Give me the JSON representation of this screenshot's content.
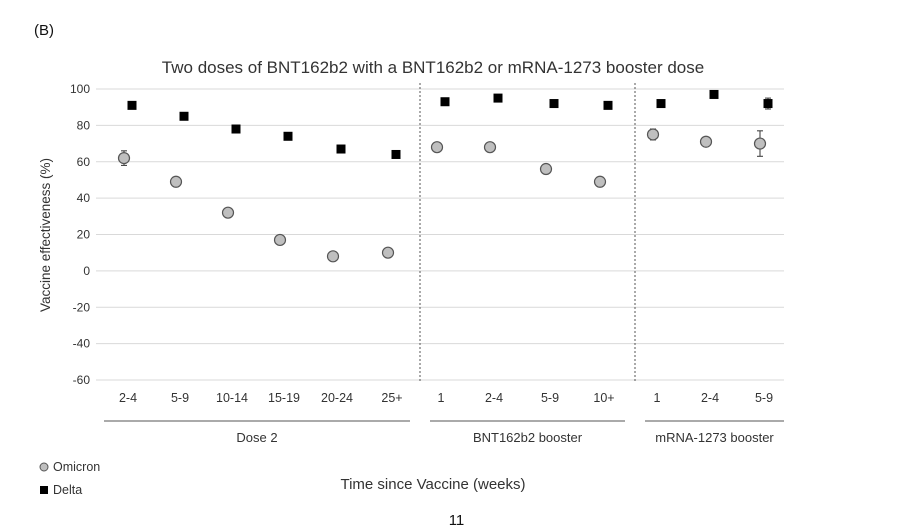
{
  "panel_label": "(B)",
  "page_number": "11",
  "chart_data": {
    "type": "scatter",
    "title": "Two doses of BNT162b2 with a BNT162b2 or mRNA-1273 booster dose",
    "ylabel": "Vaccine effectiveness (%)",
    "xlabel": "Time since Vaccine (weeks)",
    "ylim": [
      -60,
      100
    ],
    "yticks": [
      -60,
      -40,
      -20,
      0,
      20,
      40,
      60,
      80,
      100
    ],
    "grid": "horizontal",
    "legend_position": "bottom-left",
    "groups": [
      {
        "name": "Dose 2",
        "categories": [
          "2-4",
          "5-9",
          "10-14",
          "15-19",
          "20-24",
          "25+"
        ]
      },
      {
        "name": "BNT162b2 booster",
        "categories": [
          "1",
          "2-4",
          "5-9",
          "10+"
        ]
      },
      {
        "name": "mRNA-1273 booster",
        "categories": [
          "1",
          "2-4",
          "5-9"
        ]
      }
    ],
    "series": [
      {
        "name": "Omicron",
        "marker": "circle",
        "color": "#bfbfbf",
        "values": [
          62,
          49,
          32,
          17,
          8,
          10,
          68,
          68,
          56,
          49,
          75,
          71,
          70
        ],
        "errors": [
          4,
          2,
          1,
          1,
          1,
          2,
          0,
          0,
          0,
          0,
          3,
          2,
          7
        ]
      },
      {
        "name": "Delta",
        "marker": "square",
        "color": "#000000",
        "values": [
          91,
          85,
          78,
          74,
          67,
          64,
          93,
          95,
          92,
          91,
          92,
          97,
          92
        ],
        "errors": [
          0,
          0,
          0,
          0,
          0,
          0,
          0,
          0,
          0,
          0,
          0,
          0,
          3
        ]
      }
    ]
  }
}
